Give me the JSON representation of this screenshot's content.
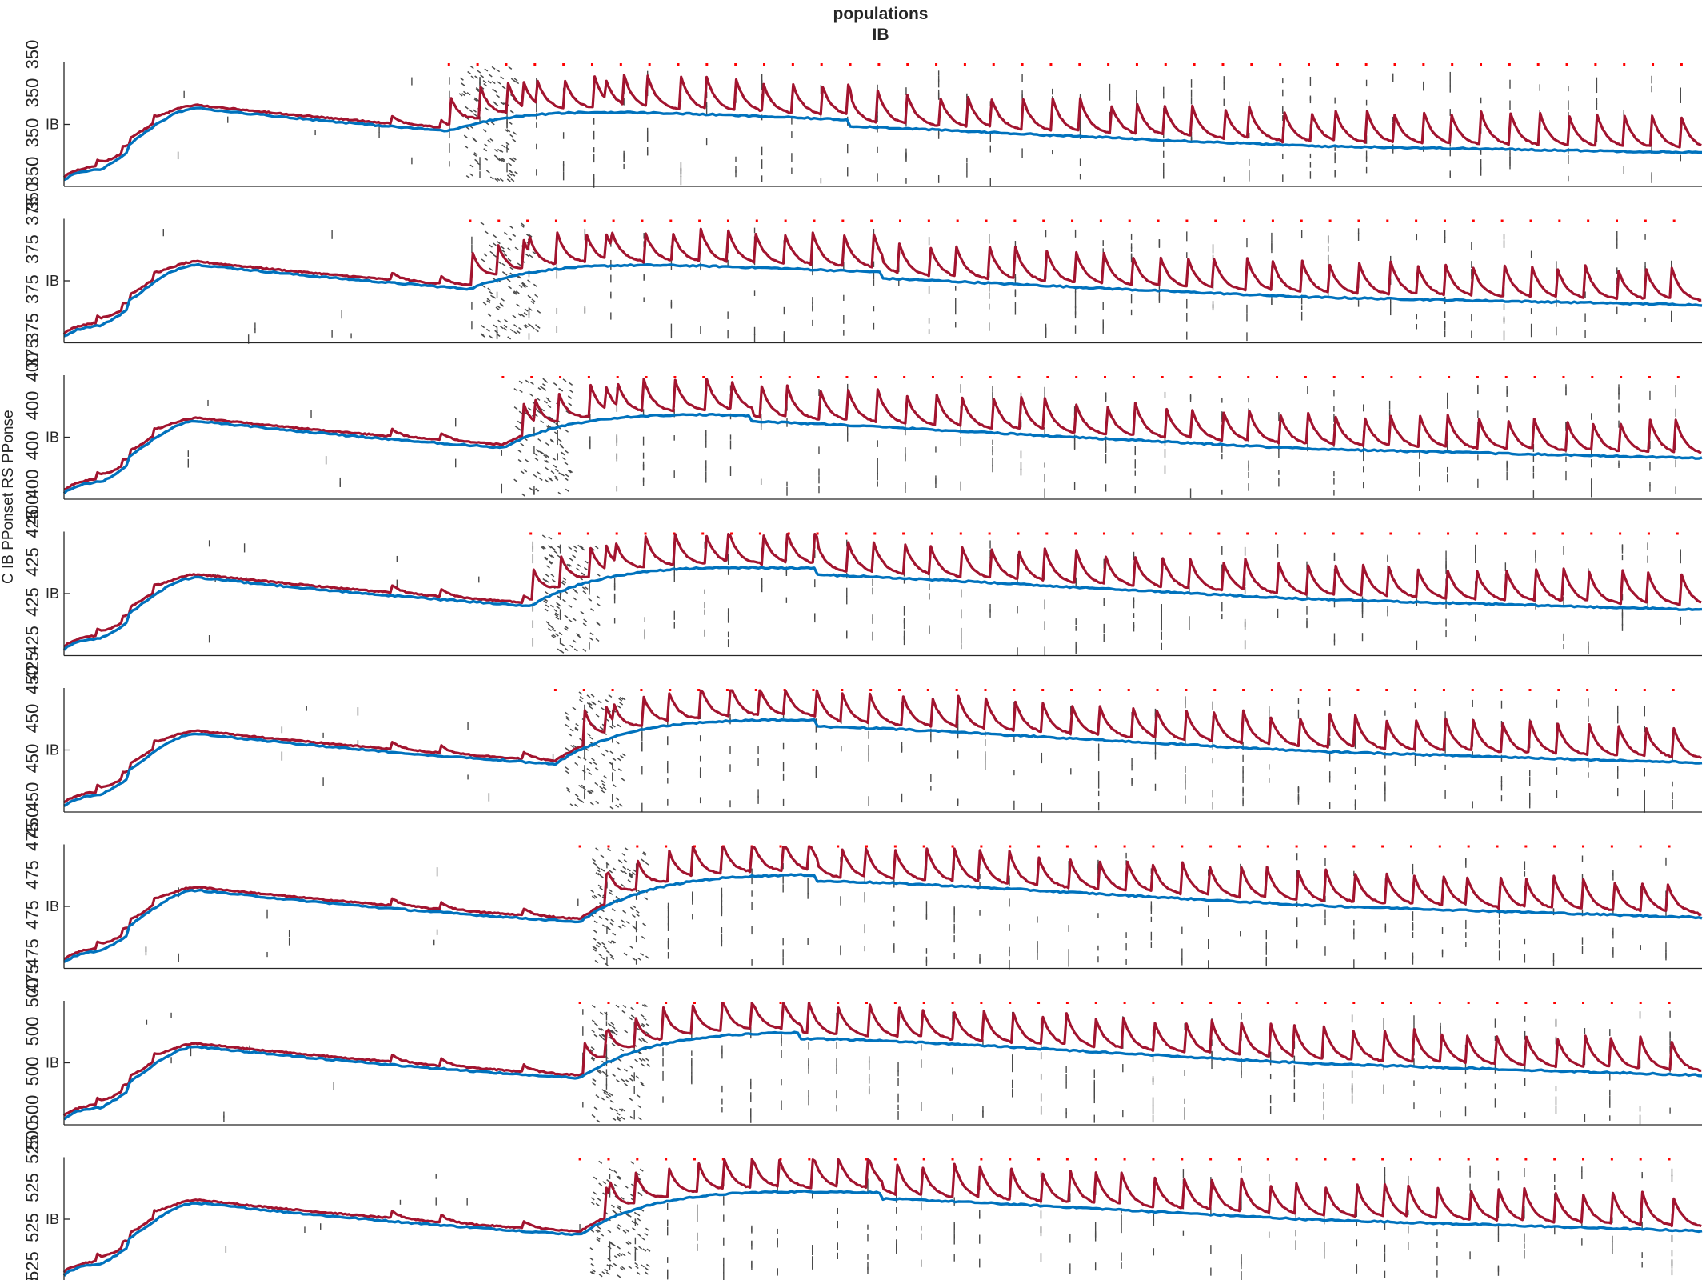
{
  "figure": {
    "title_line1": "populations",
    "title_line2": "IB",
    "overall_ylabel": "C IB PPonset RS PPonse"
  },
  "colors": {
    "raster": "#4a4a4a",
    "red_series": "#a2142f",
    "blue_series": "#0072bd",
    "marker": "#ff0000",
    "axis": "#262626"
  },
  "chart_data": {
    "type": "line",
    "panel_count": 8,
    "shared_ytick_label": "IB",
    "series_names": [],
    "xlim": [
      0,
      1
    ],
    "ylim": [
      0,
      1
    ],
    "grid": false,
    "legend": "none",
    "panels": [
      {
        "label": "350",
        "onset": 0.235,
        "bump": 0.5,
        "peak_t": 0.48,
        "ylabels": [
          "350",
          "350",
          "350",
          "350",
          "350"
        ]
      },
      {
        "label": "375",
        "onset": 0.248,
        "bump": 0.58,
        "peak_t": 0.5,
        "ylabels": [
          "375",
          "375",
          "375",
          "375",
          "375"
        ]
      },
      {
        "label": "400",
        "onset": 0.268,
        "bump": 0.72,
        "peak_t": 0.42,
        "ylabels": [
          "400",
          "400",
          "400",
          "400",
          "400"
        ]
      },
      {
        "label": "425",
        "onset": 0.285,
        "bump": 0.8,
        "peak_t": 0.46,
        "ylabels": [
          "425",
          "425",
          "425",
          "425",
          "425"
        ]
      },
      {
        "label": "450",
        "onset": 0.3,
        "bump": 0.88,
        "peak_t": 0.46,
        "ylabels": [
          "450",
          "450",
          "450",
          "450",
          "450"
        ]
      },
      {
        "label": "475",
        "onset": 0.315,
        "bump": 0.92,
        "peak_t": 0.46,
        "ylabels": [
          "475",
          "475",
          "475",
          "475",
          "475"
        ]
      },
      {
        "label": "500",
        "onset": 0.315,
        "bump": 0.9,
        "peak_t": 0.45,
        "ylabels": [
          "500",
          "500",
          "500",
          "500",
          "500"
        ]
      },
      {
        "label": "525",
        "onset": 0.315,
        "bump": 0.86,
        "peak_t": 0.5,
        "ylabels": [
          "525",
          "525",
          "525",
          "525",
          "525"
        ]
      }
    ]
  }
}
